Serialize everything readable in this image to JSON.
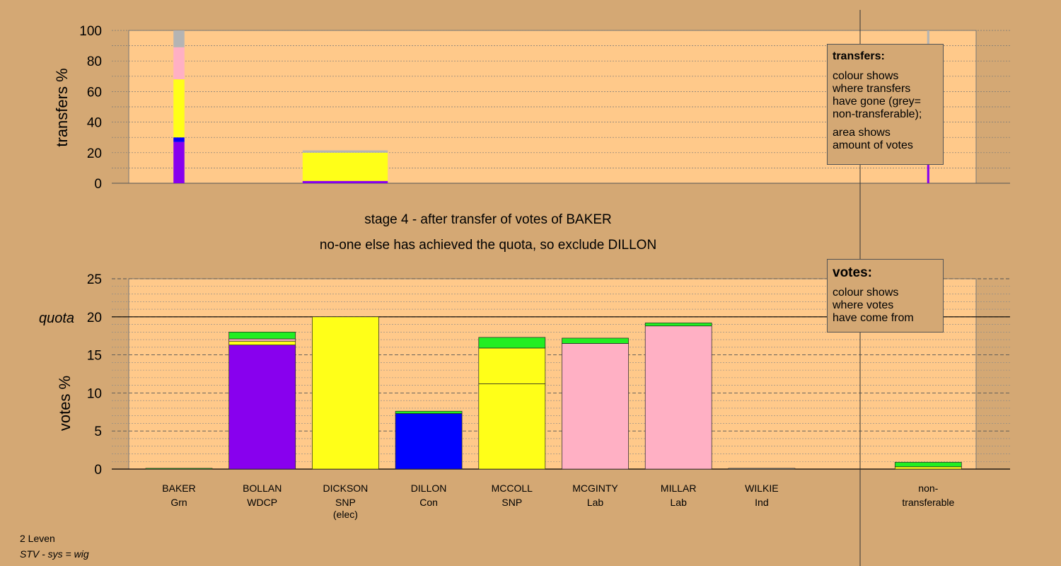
{
  "colors": {
    "background": "#d4a874",
    "plot_area": "#ffc98a",
    "non_transferable_grey": "#b4b4b4",
    "BOLLAN": "#8800ee",
    "DICKSON": "#ffff18",
    "DILLON": "#0000ff",
    "MCCOLL": "#ffff18",
    "MCGINTY": "#ffb0c4",
    "MILLAR": "#ffb0c4",
    "WILKIE": "#b4b4b4",
    "BAKER": "#22ee22"
  },
  "stage": {
    "line1": "stage 4 - after transfer of votes of BAKER",
    "line2": "no-one else has achieved the quota, so exclude DILLON"
  },
  "footer": {
    "line1": "2 Leven",
    "line2": "STV - sys = wig"
  },
  "legend_transfers": {
    "title": "transfers:",
    "lines": [
      "colour shows",
      "where transfers",
      "have gone (grey=",
      "non-transferable);"
    ],
    "lines2": [
      "area shows",
      "amount of votes"
    ]
  },
  "legend_votes": {
    "title": "votes:",
    "lines": [
      "colour shows",
      "where votes",
      "have come from"
    ]
  },
  "candidates": [
    {
      "name": "BAKER",
      "party": "Grn",
      "note": ""
    },
    {
      "name": "BOLLAN",
      "party": "WDCP",
      "note": ""
    },
    {
      "name": "DICKSON",
      "party": "SNP",
      "note": "(elec)"
    },
    {
      "name": "DILLON",
      "party": "Con",
      "note": ""
    },
    {
      "name": "MCCOLL",
      "party": "SNP",
      "note": ""
    },
    {
      "name": "MCGINTY",
      "party": "Lab",
      "note": ""
    },
    {
      "name": "MILLAR",
      "party": "Lab",
      "note": ""
    },
    {
      "name": "WILKIE",
      "party": "Ind",
      "note": ""
    },
    {
      "name": "non-",
      "party": "transferable",
      "note": ""
    }
  ],
  "chart_data": [
    {
      "type": "bar",
      "ylabel": "transfers %",
      "ylim": [
        0,
        100
      ],
      "yticks": [
        0,
        20,
        40,
        60,
        80,
        100
      ],
      "grid": true,
      "bars": [
        {
          "column": 0,
          "width_fraction": 0.15,
          "segments": [
            {
              "source": "BOLLAN",
              "value": 27
            },
            {
              "source": "DILLON",
              "value": 3
            },
            {
              "source": "DICKSON",
              "value": 38
            },
            {
              "source": "MCGINTY",
              "value": 21
            },
            {
              "source": "non-transferable",
              "value": 11
            }
          ]
        },
        {
          "column": 2,
          "width_fraction": 1.0,
          "segments": [
            {
              "source": "BOLLAN",
              "value": 1.5
            },
            {
              "source": "DICKSON",
              "value": 18.5
            },
            {
              "source": "non-transferable",
              "value": 1.5
            }
          ]
        },
        {
          "column": 7.5,
          "width_fraction": 0.03,
          "segments": [
            {
              "source": "BOLLAN",
              "value": 32
            },
            {
              "source": "DILLON",
              "value": 21
            },
            {
              "source": "DICKSON",
              "value": 7
            },
            {
              "source": "MCGINTY",
              "value": 18
            },
            {
              "source": "non-transferable",
              "value": 22
            }
          ]
        }
      ]
    },
    {
      "type": "bar",
      "ylabel": "votes %",
      "ylim": [
        0,
        25
      ],
      "yticks": [
        0,
        5,
        10,
        15,
        20,
        25
      ],
      "quota": 20,
      "quota_label": "quota",
      "grid": true,
      "bars": [
        {
          "candidate": "BAKER",
          "segments": [
            {
              "source": "BAKER",
              "value": 0.1
            }
          ]
        },
        {
          "candidate": "BOLLAN",
          "segments": [
            {
              "source": "BOLLAN",
              "value": 16.3
            },
            {
              "source": "DICKSON",
              "value": 0.5
            },
            {
              "source": "MCGINTY",
              "value": 0.3
            },
            {
              "source": "BAKER",
              "value": 0.9
            }
          ]
        },
        {
          "candidate": "DICKSON",
          "segments": [
            {
              "source": "DICKSON",
              "value": 20
            }
          ]
        },
        {
          "candidate": "DILLON",
          "segments": [
            {
              "source": "DILLON",
              "value": 7.3
            },
            {
              "source": "BAKER",
              "value": 0.3
            }
          ]
        },
        {
          "candidate": "MCCOLL",
          "segments": [
            {
              "source": "MCCOLL",
              "value": 11.2
            },
            {
              "source": "DICKSON",
              "value": 4.7
            },
            {
              "source": "BAKER",
              "value": 1.4
            }
          ]
        },
        {
          "candidate": "MCGINTY",
          "segments": [
            {
              "source": "MCGINTY",
              "value": 16.5
            },
            {
              "source": "BAKER",
              "value": 0.7
            }
          ]
        },
        {
          "candidate": "MILLAR",
          "segments": [
            {
              "source": "MILLAR",
              "value": 18.8
            },
            {
              "source": "BAKER",
              "value": 0.4
            }
          ]
        },
        {
          "candidate": "WILKIE",
          "segments": [
            {
              "source": "WILKIE",
              "value": 0.1
            }
          ]
        },
        {
          "candidate": "non-transferable",
          "segments": [
            {
              "source": "DICKSON",
              "value": 0.3
            },
            {
              "source": "BAKER",
              "value": 0.6
            }
          ]
        }
      ]
    }
  ]
}
